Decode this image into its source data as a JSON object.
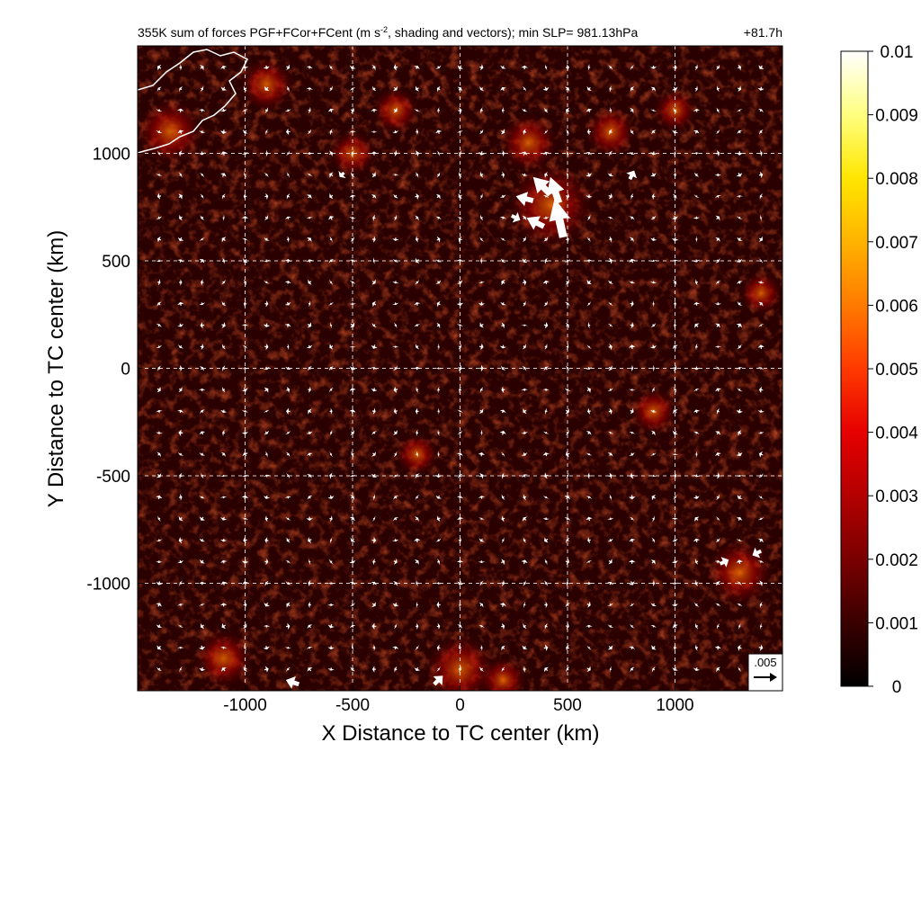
{
  "chart_data": {
    "type": "heatmap",
    "title": "355K sum of forces PGF+FCor+FCent (m s",
    "title_superscript": "-2",
    "title_rest": ", shading and vectors); min SLP= 981.13hPa",
    "time_label": "+81.7h",
    "xlabel": "X Distance to TC center (km)",
    "ylabel": "Y Distance to TC center (km)",
    "xlim": [
      -1500,
      1500
    ],
    "ylim": [
      -1500,
      1500
    ],
    "x_ticks": [
      -1000,
      -500,
      0,
      500,
      1000
    ],
    "y_ticks": [
      1000,
      500,
      0,
      -500,
      -1000
    ],
    "x_tick_labels": [
      "-1000",
      "-500",
      "0",
      "500",
      "1000"
    ],
    "y_tick_labels": [
      "1000",
      "500",
      "0",
      "-500",
      "-1000"
    ],
    "grid": true,
    "colorbar": {
      "min": 0,
      "max": 0.01,
      "tick_labels": [
        "0.01",
        "0.009",
        "0.008",
        "0.007",
        "0.006",
        "0.005",
        "0.004",
        "0.003",
        "0.002",
        "0.001",
        "0"
      ],
      "colormap": [
        "#000000",
        "#3a0000",
        "#7a0000",
        "#b30000",
        "#e60000",
        "#ff3a00",
        "#ff7a00",
        "#ffb300",
        "#ffe600",
        "#ffff80",
        "#ffffff"
      ]
    },
    "reference_vector": {
      "label": ".005",
      "magnitude": 0.005
    },
    "vector_field": {
      "spacing_km": 100,
      "strong_vectors": [
        {
          "x": 380,
          "y": 850,
          "u": -0.004,
          "v": 0.004
        },
        {
          "x": 460,
          "y": 700,
          "u": -0.002,
          "v": 0.009
        },
        {
          "x": 440,
          "y": 830,
          "u": -0.002,
          "v": 0.006
        },
        {
          "x": 300,
          "y": 790,
          "u": -0.004,
          "v": 0.001
        },
        {
          "x": 260,
          "y": 700,
          "u": 0.002,
          "v": -0.001
        },
        {
          "x": 350,
          "y": 680,
          "u": -0.004,
          "v": 0.002
        },
        {
          "x": -100,
          "y": -1450,
          "u": 0.002,
          "v": 0.002
        },
        {
          "x": -780,
          "y": -1460,
          "u": -0.003,
          "v": 0.001
        },
        {
          "x": 1380,
          "y": -860,
          "u": -0.002,
          "v": -0.001
        },
        {
          "x": 1230,
          "y": -900,
          "u": 0.002,
          "v": 0.001
        },
        {
          "x": 800,
          "y": 900,
          "u": 0.001,
          "v": 0.002
        },
        {
          "x": -550,
          "y": 900,
          "u": -0.001,
          "v": -0.001
        }
      ]
    }
  }
}
